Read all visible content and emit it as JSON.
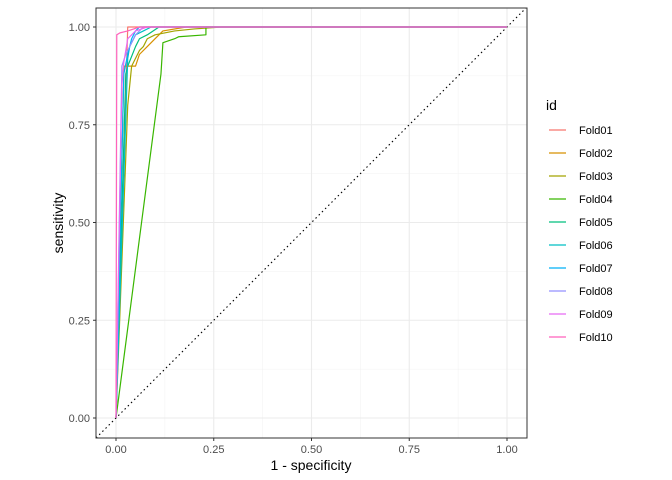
{
  "chart_data": {
    "type": "line",
    "title": "",
    "xlabel": "1 - specificity",
    "ylabel": "sensitivity",
    "xlim": [
      0,
      1
    ],
    "ylim": [
      0,
      1
    ],
    "xticks": [
      "0.00",
      "0.25",
      "0.50",
      "0.75",
      "1.00"
    ],
    "yticks": [
      "0.00",
      "0.25",
      "0.50",
      "0.75",
      "1.00"
    ],
    "grid": true,
    "diagonal_reference": true,
    "legend": {
      "title": "id",
      "position": "right"
    },
    "series": [
      {
        "name": "Fold01",
        "color": "#F8766D",
        "x": [
          0,
          0.03,
          0.03,
          0.25,
          1
        ],
        "y": [
          0,
          1.0,
          1.0,
          1.0,
          1
        ]
      },
      {
        "name": "Fold02",
        "color": "#D89000",
        "x": [
          0,
          0.02,
          0.02,
          0.05,
          0.06,
          0.08,
          0.1,
          0.12,
          0.18,
          1
        ],
        "y": [
          0,
          0.88,
          0.9,
          0.9,
          0.93,
          0.95,
          0.97,
          0.99,
          1.0,
          1
        ]
      },
      {
        "name": "Fold03",
        "color": "#A3A500",
        "x": [
          0,
          0.03,
          0.04,
          0.06,
          0.07,
          0.08,
          0.1,
          0.15,
          0.2,
          0.27,
          1
        ],
        "y": [
          0,
          0.8,
          0.9,
          0.94,
          0.95,
          0.97,
          0.98,
          0.99,
          0.995,
          1.0,
          1
        ]
      },
      {
        "name": "Fold04",
        "color": "#39B600",
        "x": [
          0,
          0.115,
          0.12,
          0.12,
          0.15,
          0.16,
          0.23,
          0.23,
          0.28,
          1
        ],
        "y": [
          0,
          0.88,
          0.96,
          0.96,
          0.97,
          0.975,
          0.98,
          1.0,
          1.0,
          1
        ]
      },
      {
        "name": "Fold05",
        "color": "#00BF7D",
        "x": [
          0,
          0.025,
          0.03,
          0.05,
          0.06,
          0.08,
          0.11,
          1
        ],
        "y": [
          0,
          0.88,
          0.9,
          0.95,
          0.97,
          0.98,
          1.0,
          1
        ]
      },
      {
        "name": "Fold06",
        "color": "#00BFC4",
        "x": [
          0,
          0.03,
          0.035,
          0.05,
          0.07,
          0.09,
          1
        ],
        "y": [
          0,
          0.92,
          0.95,
          0.98,
          0.99,
          1.0,
          1
        ]
      },
      {
        "name": "Fold07",
        "color": "#00B0F6",
        "x": [
          0,
          0.02,
          0.03,
          0.04,
          0.05,
          0.06,
          1
        ],
        "y": [
          0,
          0.88,
          0.93,
          0.97,
          0.99,
          1.0,
          1
        ]
      },
      {
        "name": "Fold08",
        "color": "#9590FF",
        "x": [
          0,
          0.015,
          0.025,
          0.04,
          0.05,
          0.07,
          1
        ],
        "y": [
          0,
          0.9,
          0.93,
          0.96,
          0.98,
          1.0,
          1
        ]
      },
      {
        "name": "Fold09",
        "color": "#E76BF3",
        "x": [
          0,
          0.015,
          0.02,
          0.03,
          0.05,
          0.08,
          1
        ],
        "y": [
          0,
          0.85,
          0.91,
          0.97,
          0.99,
          1.0,
          1
        ]
      },
      {
        "name": "Fold10",
        "color": "#FF62BC",
        "x": [
          0,
          0.002,
          0.01,
          0.03,
          0.06,
          1
        ],
        "y": [
          0,
          0.98,
          0.985,
          0.99,
          1.0,
          1
        ]
      }
    ]
  }
}
